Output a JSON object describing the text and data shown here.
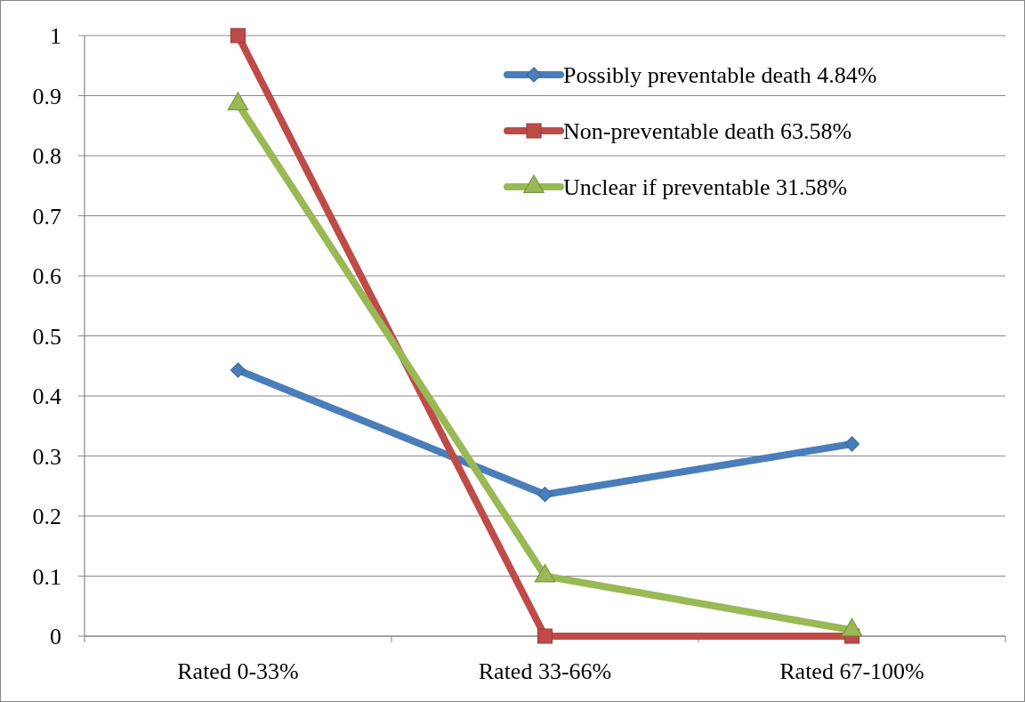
{
  "chart_data": {
    "type": "line",
    "categories": [
      "Rated 0-33%",
      "Rated 33-66%",
      "Rated 67-100%"
    ],
    "series": [
      {
        "name": "Possibly preventable death 4.84%",
        "color": "#4a7ebb",
        "marker": "diamond",
        "values": [
          0.443,
          0.236,
          0.32
        ]
      },
      {
        "name": "Non-preventable death 63.58%",
        "color": "#be4b48",
        "marker": "square",
        "values": [
          1,
          0,
          0
        ]
      },
      {
        "name": "Unclear if preventable 31.58%",
        "color": "#98b954",
        "marker": "triangle",
        "values": [
          0.886,
          0.1,
          0.01
        ]
      }
    ],
    "ylim": [
      0,
      1
    ],
    "yticks": [
      0,
      {
        "value": 0.1,
        "label": "0.1"
      },
      {
        "value": 0.2,
        "label": "0.2"
      },
      {
        "value": 0.3,
        "label": "0.3"
      },
      {
        "value": 0.4,
        "label": "0.4"
      },
      {
        "value": 0.5,
        "label": "0.5"
      },
      {
        "value": 0.6,
        "label": "0.6"
      },
      {
        "value": 0.7,
        "label": "0.7"
      },
      {
        "value": 0.8,
        "label": "0.8"
      },
      {
        "value": 0.9,
        "label": "0.9"
      },
      1
    ],
    "grid": "y",
    "legend": "top right",
    "line_style": "solid"
  }
}
